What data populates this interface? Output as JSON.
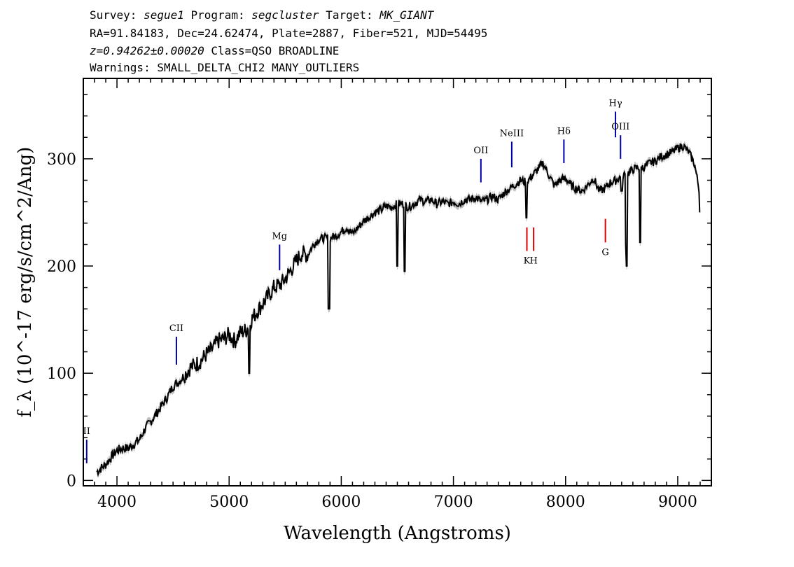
{
  "header": {
    "line1": {
      "survey_label": "Survey:",
      "survey": "segue1",
      "program_label": "Program:",
      "program": "segcluster",
      "target_label": "Target:",
      "target": "MK_GIANT"
    },
    "line2": "RA=91.84183, Dec=24.62474, Plate=2887, Fiber=521, MJD=54495",
    "line3": {
      "redshift": "z=0.94262±0.00020",
      "class": "Class=QSO BROADLINE"
    },
    "line4": "Warnings: SMALL_DELTA_CHI2 MANY_OUTLIERS"
  },
  "colors": {
    "spectrum": "#000000",
    "error_band": "#bdbdbd",
    "emission_line": "#0000aa",
    "absorption_line": "#dd0000",
    "axis": "#000000"
  },
  "chart_data": {
    "type": "line",
    "xlabel": "Wavelength (Angstroms)",
    "ylabel": "f_λ (10^-17 erg/s/cm^2/Ang)",
    "xlim": [
      3700,
      9300
    ],
    "ylim": [
      -5,
      375
    ],
    "x_ticks": [
      4000,
      5000,
      6000,
      7000,
      8000,
      9000
    ],
    "y_ticks": [
      0,
      100,
      200,
      300
    ],
    "series": [
      {
        "x": [
          3820,
          3900,
          3950,
          4000,
          4050,
          4100,
          4150,
          4200,
          4250,
          4300,
          4350,
          4400,
          4450,
          4500,
          4550,
          4600,
          4650,
          4700,
          4750,
          4800,
          4850,
          4900,
          4950,
          5000,
          5050,
          5100,
          5150,
          5200,
          5250,
          5300,
          5350,
          5400,
          5450,
          5500,
          5550,
          5600,
          5650,
          5700,
          5750,
          5800,
          5850,
          5900,
          5950,
          6000,
          6050,
          6100,
          6150,
          6200,
          6250,
          6300,
          6350,
          6400,
          6450,
          6500,
          6550,
          6600,
          6650,
          6700,
          6750,
          6800,
          6850,
          6900,
          6950,
          7000,
          7050,
          7100,
          7150,
          7200,
          7250,
          7300,
          7350,
          7400,
          7450,
          7500,
          7550,
          7600,
          7650,
          7700,
          7750,
          7800,
          7850,
          7900,
          7950,
          8000,
          8050,
          8100,
          8150,
          8200,
          8250,
          8300,
          8350,
          8400,
          8450,
          8500,
          8550,
          8600,
          8650,
          8700,
          8750,
          8800,
          8850,
          8900,
          8950,
          9000,
          9050,
          9100,
          9150,
          9200
        ],
        "y": [
          8,
          15,
          22,
          28,
          30,
          30,
          34,
          38,
          48,
          55,
          62,
          70,
          78,
          88,
          92,
          98,
          105,
          108,
          112,
          118,
          122,
          130,
          132,
          136,
          130,
          138,
          140,
          150,
          158,
          165,
          172,
          180,
          182,
          188,
          196,
          205,
          212,
          210,
          220,
          225,
          226,
          226,
          228,
          232,
          236,
          230,
          236,
          242,
          246,
          250,
          252,
          256,
          255,
          258,
          258,
          255,
          258,
          262,
          260,
          262,
          258,
          260,
          258,
          260,
          258,
          262,
          262,
          264,
          260,
          262,
          265,
          262,
          268,
          272,
          276,
          280,
          278,
          284,
          290,
          296,
          285,
          275,
          280,
          282,
          275,
          272,
          270,
          276,
          282,
          270,
          272,
          278,
          280,
          284,
          286,
          290,
          292,
          292,
          296,
          298,
          302,
          304,
          306,
          310,
          312,
          306,
          295,
          266
        ]
      }
    ],
    "dips": [
      {
        "x": 5180,
        "y": 100
      },
      {
        "x": 5890,
        "y": 160
      },
      {
        "x": 6500,
        "y": 200
      },
      {
        "x": 6565,
        "y": 195
      },
      {
        "x": 7650,
        "y": 245
      },
      {
        "x": 8500,
        "y": 270
      },
      {
        "x": 8540,
        "y": 220
      },
      {
        "x": 8545,
        "y": 200
      },
      {
        "x": 8665,
        "y": 222
      },
      {
        "x": 9200,
        "y": 250
      }
    ],
    "emission_lines": [
      {
        "label": "CII",
        "x": 4530,
        "y0": 108,
        "y1": 134
      },
      {
        "label": "Mg",
        "x": 5450,
        "y0": 196,
        "y1": 220
      },
      {
        "label": "OII",
        "x": 7245,
        "y0": 278,
        "y1": 300
      },
      {
        "label": "NeIII",
        "x": 7520,
        "y0": 292,
        "y1": 316
      },
      {
        "label": "Hδ",
        "x": 7985,
        "y0": 296,
        "y1": 318
      },
      {
        "label": "Hγ",
        "x": 8445,
        "y0": 320,
        "y1": 344
      },
      {
        "label": "OIII",
        "x": 8490,
        "y0": 300,
        "y1": 322
      },
      {
        "label": "II",
        "x": 3730,
        "y0": 16,
        "y1": 38
      }
    ],
    "absorption_lines": [
      {
        "label": "K",
        "x": 7655,
        "y0": 214,
        "y1": 236
      },
      {
        "label": "H",
        "x": 7715,
        "y0": 214,
        "y1": 236
      },
      {
        "label": "G",
        "x": 8355,
        "y0": 222,
        "y1": 244
      }
    ]
  }
}
